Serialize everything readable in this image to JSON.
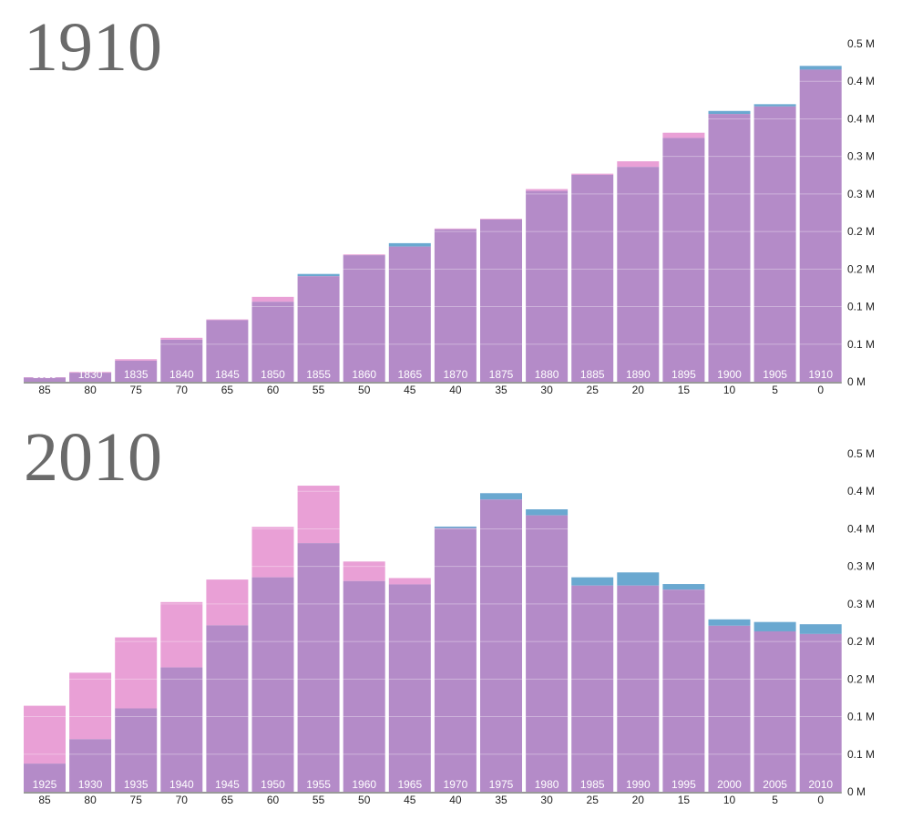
{
  "colors": {
    "women": "#e9a0d6",
    "men": "#6aa8d0",
    "overlap": "#b48bc8",
    "gridline": "#ffffff"
  },
  "chart_data": [
    {
      "type": "bar",
      "title": "1910",
      "ages": [
        "85",
        "80",
        "75",
        "70",
        "65",
        "60",
        "55",
        "50",
        "45",
        "40",
        "35",
        "30",
        "25",
        "20",
        "15",
        "10",
        "5",
        "0"
      ],
      "categories": [
        "1825",
        "1830",
        "1835",
        "1840",
        "1845",
        "1850",
        "1855",
        "1860",
        "1865",
        "1870",
        "1875",
        "1880",
        "1885",
        "1890",
        "1895",
        "1900",
        "1905",
        "1910"
      ],
      "series": [
        {
          "name": "men",
          "values": [
            11,
            24,
            56,
            112,
            164,
            213,
            287,
            337,
            369,
            406,
            432,
            508,
            551,
            572,
            649,
            721,
            739,
            841
          ]
        },
        {
          "name": "women",
          "values": [
            12,
            26,
            60,
            117,
            166,
            226,
            281,
            339,
            360,
            408,
            434,
            513,
            554,
            587,
            663,
            713,
            733,
            831
          ]
        }
      ],
      "y_ticks": [
        "0 M",
        "0.1 M",
        "0.1 M",
        "0.2 M",
        "0.2 M",
        "0.3 M",
        "0.3 M",
        "0.4 M",
        "0.4 M",
        "0.5 M"
      ],
      "ylim": [
        0,
        900
      ]
    },
    {
      "type": "bar",
      "title": "2010",
      "ages": [
        "85",
        "80",
        "75",
        "70",
        "65",
        "60",
        "55",
        "50",
        "45",
        "40",
        "35",
        "30",
        "25",
        "20",
        "15",
        "10",
        "5",
        "0"
      ],
      "categories": [
        "1925",
        "1930",
        "1935",
        "1940",
        "1945",
        "1950",
        "1955",
        "1960",
        "1965",
        "1970",
        "1975",
        "1980",
        "1985",
        "1990",
        "1995",
        "2000",
        "2005",
        "2010"
      ],
      "series": [
        {
          "name": "men",
          "values": [
            75,
            140,
            222,
            331,
            443,
            571,
            662,
            561,
            552,
            706,
            795,
            752,
            571,
            584,
            553,
            459,
            452,
            446
          ]
        },
        {
          "name": "women",
          "values": [
            229,
            317,
            411,
            505,
            565,
            705,
            815,
            613,
            569,
            702,
            778,
            736,
            549,
            549,
            538,
            442,
            427,
            420
          ]
        }
      ],
      "y_ticks": [
        "0 M",
        "0.1 M",
        "0.1 M",
        "0.2 M",
        "0.2 M",
        "0.3 M",
        "0.3 M",
        "0.4 M",
        "0.4 M",
        "0.5 M"
      ],
      "ylim": [
        0,
        900
      ]
    }
  ]
}
